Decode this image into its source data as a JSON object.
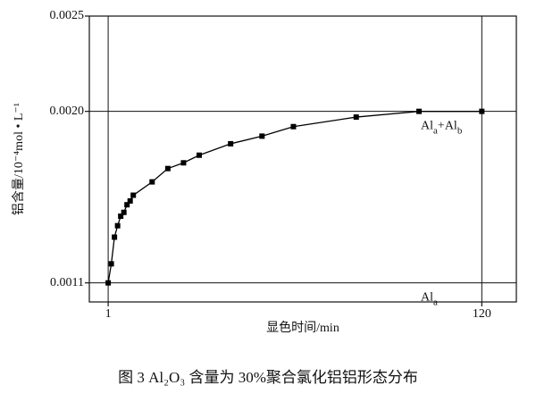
{
  "chart_data": {
    "type": "line",
    "x_label": "显色时间/min",
    "y_label": "铝含量/10⁻⁴mol • L⁻¹",
    "caption": "图 3   Al₂O₃ 含量为 30%聚合氯化铝铝形态分布",
    "x": [
      1,
      2,
      3,
      4,
      5,
      6,
      7,
      8,
      9,
      15,
      20,
      25,
      30,
      40,
      50,
      60,
      80,
      100,
      120
    ],
    "series": [
      {
        "color": "#000000",
        "values": [
          0.0011,
          0.0012,
          0.00134,
          0.0014,
          0.00145,
          0.00147,
          0.00151,
          0.00153,
          0.00156,
          0.00163,
          0.0017,
          0.00173,
          0.00177,
          0.00183,
          0.00187,
          0.00192,
          0.00197,
          0.002,
          0.002
        ]
      }
    ],
    "xlim": [
      -5,
      131
    ],
    "xticks": [
      1,
      120
    ],
    "ylim": [
      0.001,
      0.0025
    ],
    "yticks": [
      {
        "value": 0.0011,
        "label": "0.0011"
      },
      {
        "value": 0.002,
        "label": "0.0020"
      },
      {
        "value": 0.0025,
        "label": "0.0025"
      }
    ],
    "grid": true,
    "annotations": [
      {
        "parts": [
          "Al",
          "a",
          "+Al",
          "b"
        ],
        "x": 100,
        "y": 0.002
      },
      {
        "parts": [
          "Al",
          "a"
        ],
        "x": 100,
        "y": 0.0011
      }
    ]
  }
}
